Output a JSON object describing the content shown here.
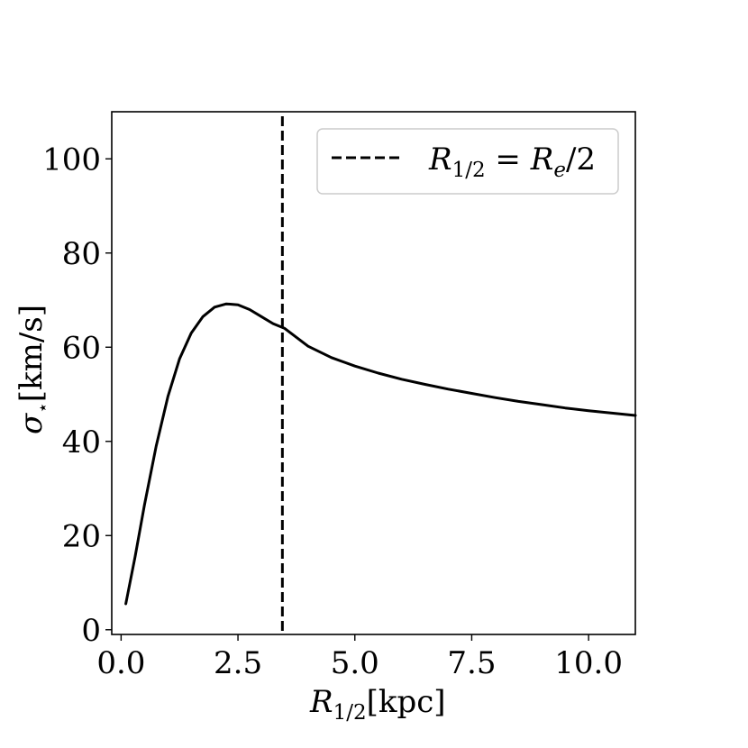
{
  "chart_data": {
    "type": "line",
    "xlabel": {
      "main": "R",
      "sub": "1/2",
      "unit": "[kpc]"
    },
    "ylabel": {
      "main": "σ",
      "sub": "⋆",
      "unit": "[km/s]"
    },
    "xlim": [
      -0.2,
      11.0
    ],
    "ylim": [
      -1,
      110
    ],
    "xticks": [
      0.0,
      2.5,
      5.0,
      7.5,
      10.0
    ],
    "xtick_labels": [
      "0.0",
      "2.5",
      "5.0",
      "7.5",
      "10.0"
    ],
    "yticks": [
      0,
      20,
      40,
      60,
      80,
      100
    ],
    "ytick_labels": [
      "0",
      "20",
      "40",
      "60",
      "80",
      "100"
    ],
    "grid": false,
    "legend_position": "top-right",
    "series": [
      {
        "style": "solid",
        "color": "#000000",
        "x": [
          0.1,
          0.3,
          0.5,
          0.75,
          1.0,
          1.25,
          1.5,
          1.75,
          2.0,
          2.25,
          2.5,
          2.75,
          3.0,
          3.25,
          3.5,
          4.0,
          4.5,
          5.0,
          5.5,
          6.0,
          6.5,
          7.0,
          7.5,
          8.0,
          8.5,
          9.0,
          9.5,
          10.0,
          10.5,
          11.0
        ],
        "y": [
          5.5,
          15.5,
          26.5,
          39.0,
          49.5,
          57.5,
          63.0,
          66.5,
          68.5,
          69.2,
          69.0,
          68.0,
          66.5,
          65.0,
          64.0,
          60.2,
          57.8,
          56.0,
          54.5,
          53.2,
          52.1,
          51.1,
          50.2,
          49.3,
          48.5,
          47.8,
          47.1,
          46.5,
          46.0,
          45.5
        ]
      }
    ],
    "vlines": [
      {
        "x": 3.45,
        "style": "dashed",
        "color": "#000000",
        "legend": {
          "lhs_main": "R",
          "lhs_sub": "1/2",
          "eq": " = ",
          "rhs_main": "R",
          "rhs_sub": "e",
          "rhs_tail": "/2"
        }
      }
    ]
  }
}
